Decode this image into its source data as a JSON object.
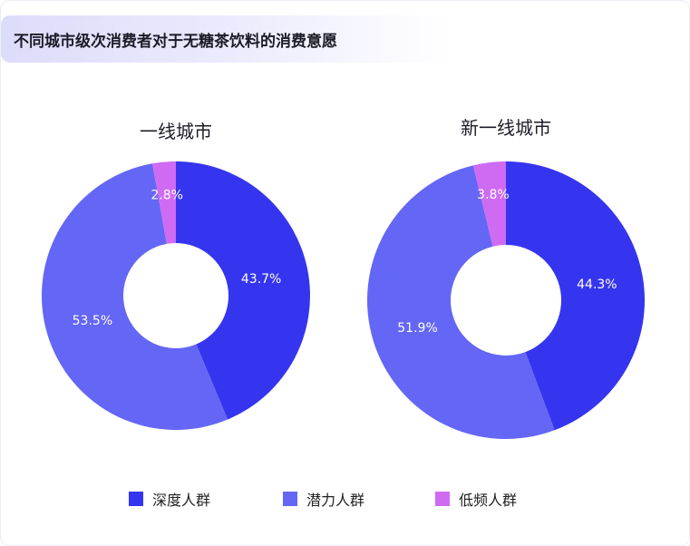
{
  "header": {
    "title": "不同城市级次消费者对于无糖茶饮料的消费意愿"
  },
  "chart_data": [
    {
      "type": "pie",
      "title": "一线城市",
      "categories": [
        "深度人群",
        "潜力人群",
        "低频人群"
      ],
      "values": [
        43.7,
        53.5,
        2.8
      ],
      "labels": [
        "43.7%",
        "53.5%",
        "2.8%"
      ]
    },
    {
      "type": "pie",
      "title": "新一线城市",
      "categories": [
        "深度人群",
        "潜力人群",
        "低频人群"
      ],
      "values": [
        44.3,
        51.9,
        3.8
      ],
      "labels": [
        "44.3%",
        "51.9%",
        "3.8%"
      ]
    }
  ],
  "legend": {
    "items": [
      {
        "label": "深度人群",
        "color": "#3535f0"
      },
      {
        "label": "潜力人群",
        "color": "#6466f5"
      },
      {
        "label": "低频人群",
        "color": "#cf6bf3"
      }
    ]
  }
}
